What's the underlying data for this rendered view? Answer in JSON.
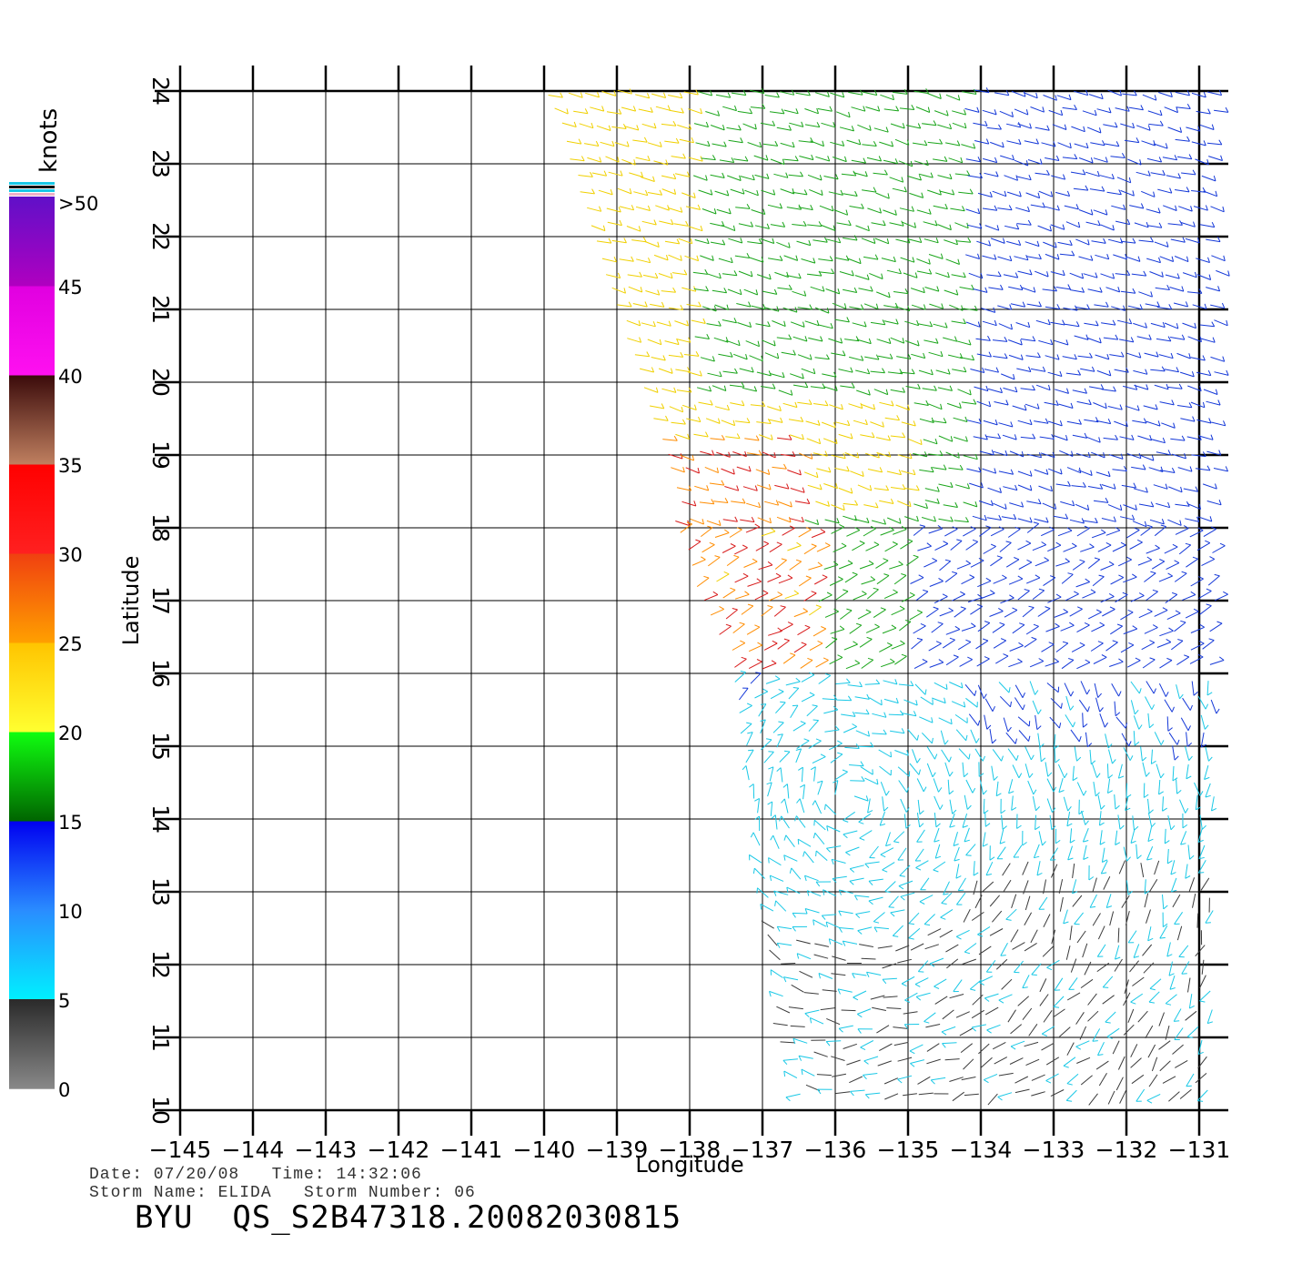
{
  "map": {
    "xlabel": "Longitude",
    "ylabel": "Latitude",
    "lon_ticks": [
      -145,
      -144,
      -143,
      -142,
      -141,
      -140,
      -139,
      -138,
      -137,
      -136,
      -135,
      -134,
      -133,
      -132,
      -131
    ],
    "lat_ticks": [
      10,
      11,
      12,
      13,
      14,
      15,
      16,
      17,
      18,
      19,
      20,
      21,
      22,
      23,
      24
    ],
    "lon_range": [
      -145,
      -131
    ],
    "lat_range": [
      10,
      24
    ]
  },
  "legend": {
    "title": "knots",
    "labels": [
      ">50",
      "45",
      "40",
      "35",
      "30",
      "25",
      "20",
      "15",
      "10",
      "5",
      "0"
    ],
    "colors": {
      "0-5": "#3a3a3a",
      "5-10": "#19c8e6",
      "10-15": "#1438d8",
      "15-20": "#1aa51a",
      "20-25": "#f0d000",
      "25-30": "#ff7a00",
      "30-35": "#e31a1a",
      "35-40": "#7a3a20",
      "40-45": "#ff10f0",
      "45-50": "#8a00c8"
    }
  },
  "footer": {
    "line1": "Date: 07/20/08   Time: 14:32:06",
    "line2": "Storm Name: ELIDA   Storm Number: 06",
    "title": "BYU  QS_S2B47318.20082030815"
  }
}
